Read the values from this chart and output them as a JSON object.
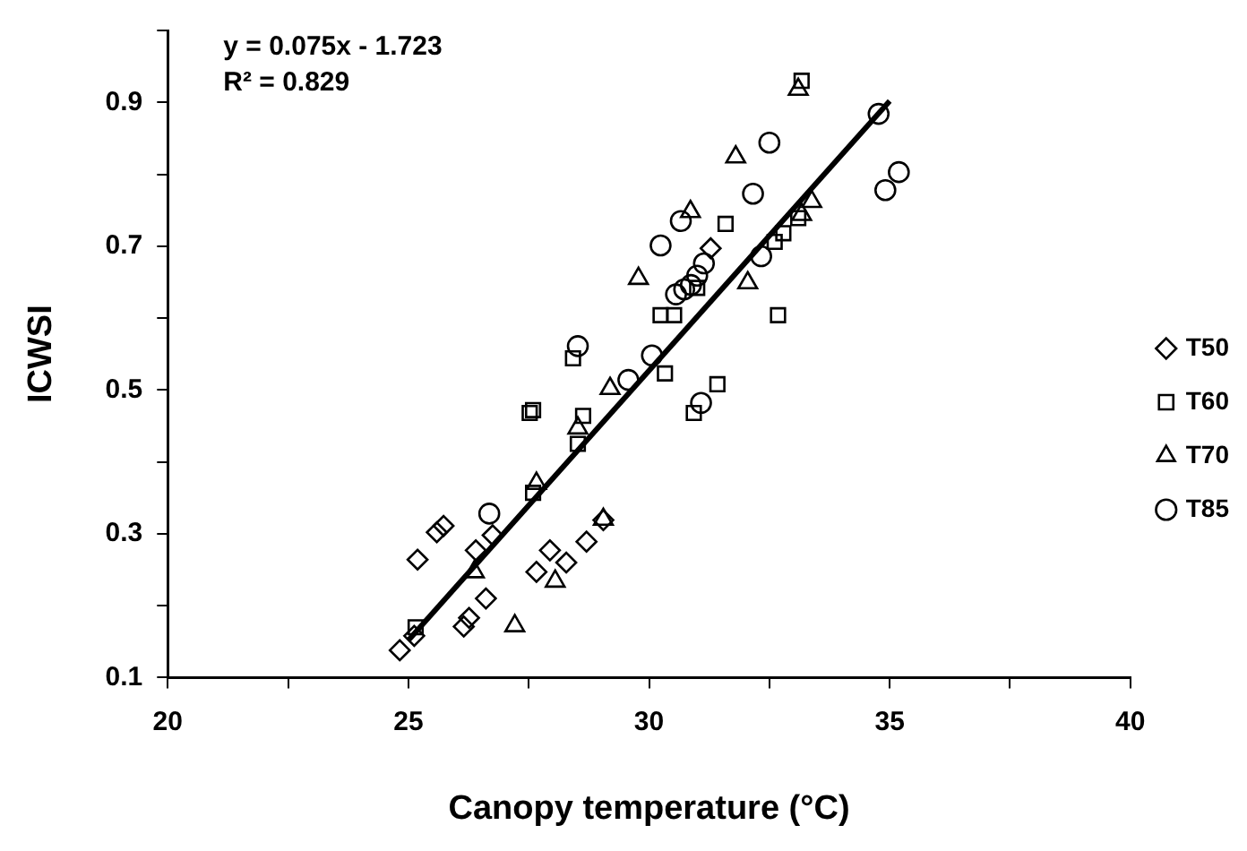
{
  "chart_data": {
    "type": "scatter",
    "xlabel": "Canopy temperature (°C)",
    "ylabel": "ICWSI",
    "annotations": [
      "y = 0.075x - 1.723",
      "R² = 0.829"
    ],
    "xlim": [
      20,
      40
    ],
    "xticks": [
      20,
      {
        "value": 22.5,
        "label": null
      },
      25,
      {
        "value": 27.5,
        "label": null
      },
      30,
      {
        "value": 32.5,
        "label": null
      },
      35,
      {
        "value": 37.5,
        "label": null
      },
      40
    ],
    "ylim": [
      0.1,
      1.0
    ],
    "yticks": [
      0.1,
      {
        "value": 0.2,
        "label": null
      },
      0.3,
      {
        "value": 0.4,
        "label": null
      },
      0.5,
      {
        "value": 0.6,
        "label": null
      },
      0.7,
      {
        "value": 0.8,
        "label": null
      },
      0.9,
      {
        "value": 1.0,
        "label": null
      }
    ],
    "grid": false,
    "legend": "right",
    "series": [
      {
        "name": "T50",
        "color": "#000000",
        "marker": "diamond",
        "x": [
          24.82,
          25.12,
          25.19,
          25.59,
          25.73,
          26.15,
          26.26,
          26.61,
          26.4,
          26.75,
          27.66,
          27.94,
          28.28,
          28.7,
          29.05,
          31.28
        ],
        "values": [
          0.138,
          0.158,
          0.264,
          0.302,
          0.311,
          0.171,
          0.183,
          0.21,
          0.277,
          0.298,
          0.247,
          0.277,
          0.26,
          0.289,
          0.319,
          0.697
        ]
      },
      {
        "name": "T60",
        "color": "#000000",
        "marker": "square",
        "x": [
          25.15,
          27.52,
          27.59,
          28.42,
          28.63,
          28.52,
          27.59,
          30.24,
          30.52,
          30.33,
          30.93,
          31.42,
          31.59,
          32.68,
          32.61,
          32.79,
          33.17,
          33.1,
          31.0
        ],
        "values": [
          0.17,
          0.468,
          0.472,
          0.544,
          0.464,
          0.425,
          0.357,
          0.604,
          0.604,
          0.523,
          0.468,
          0.508,
          0.731,
          0.604,
          0.706,
          0.718,
          0.93,
          0.739,
          0.642
        ]
      },
      {
        "name": "T70",
        "color": "#000000",
        "marker": "triangle",
        "x": [
          27.21,
          28.05,
          26.37,
          27.66,
          28.52,
          29.19,
          29.78,
          29.05,
          30.86,
          31.8,
          32.05,
          33.1,
          33.38,
          33.17
        ],
        "values": [
          0.172,
          0.234,
          0.247,
          0.37,
          0.447,
          0.502,
          0.655,
          0.32,
          0.748,
          0.824,
          0.649,
          0.918,
          0.762,
          0.744
        ]
      },
      {
        "name": "T85",
        "color": "#000000",
        "marker": "circle",
        "x": [
          26.68,
          28.52,
          29.57,
          30.06,
          30.24,
          30.66,
          30.56,
          30.73,
          30.87,
          31.0,
          31.14,
          31.08,
          32.33,
          32.16,
          32.5,
          34.77,
          34.91,
          35.19
        ],
        "values": [
          0.328,
          0.561,
          0.514,
          0.548,
          0.701,
          0.735,
          0.633,
          0.64,
          0.646,
          0.659,
          0.676,
          0.482,
          0.686,
          0.773,
          0.844,
          0.884,
          0.778,
          0.803
        ]
      },
      {
        "type": "line",
        "color": "#000000",
        "marker": "none",
        "line_style": "solid",
        "x": [
          25,
          35
        ],
        "values": [
          0.152,
          0.902
        ]
      }
    ]
  }
}
